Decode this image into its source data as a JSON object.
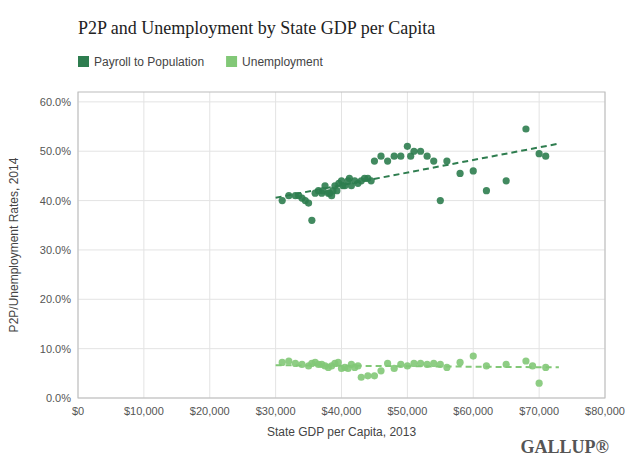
{
  "chart_data": {
    "type": "scatter",
    "title": "P2P and Unemployment by State GDP per Capita",
    "xlabel": "State GDP per Capita, 2013",
    "ylabel": "P2P/Unemployment Rates, 2014",
    "annotations": [
      "GALLUP®"
    ],
    "grid": true,
    "xlim": [
      0,
      80000
    ],
    "ylim": [
      0.0,
      0.62
    ],
    "xticks": [
      {
        "value": 0,
        "label": "$0"
      },
      {
        "value": 10000,
        "label": "$10,000"
      },
      {
        "value": 20000,
        "label": "$20,000"
      },
      {
        "value": 30000,
        "label": "$30,000"
      },
      {
        "value": 40000,
        "label": "$40,000"
      },
      {
        "value": 50000,
        "label": "$50,000"
      },
      {
        "value": 60000,
        "label": "$60,000"
      },
      {
        "value": 70000,
        "label": "$70,000"
      },
      {
        "value": 80000,
        "label": "$80,000"
      }
    ],
    "yticks": [
      {
        "value": 0.0,
        "label": "0.0%"
      },
      {
        "value": 0.1,
        "label": "10.0%"
      },
      {
        "value": 0.2,
        "label": "20.0%"
      },
      {
        "value": 0.3,
        "label": "30.0%"
      },
      {
        "value": 0.4,
        "label": "40.0%"
      },
      {
        "value": 0.5,
        "label": "50.0%"
      },
      {
        "value": 0.6,
        "label": "60.0%"
      }
    ],
    "series": [
      {
        "name": "Payroll to Population",
        "color": "#2e7d4f",
        "type": "scatter",
        "x": [
          31000,
          32000,
          33000,
          33500,
          34000,
          34500,
          35000,
          35500,
          36000,
          36500,
          37000,
          37200,
          37500,
          38000,
          38200,
          38500,
          38700,
          39000,
          39300,
          39600,
          40000,
          40200,
          40500,
          41000,
          41200,
          41500,
          42000,
          42500,
          43000,
          43500,
          44000,
          44500,
          45000,
          46000,
          47000,
          48000,
          49000,
          50000,
          50500,
          51000,
          52000,
          53000,
          54000,
          55000,
          56000,
          58000,
          60000,
          62000,
          65000,
          68000,
          70000,
          71000
        ],
        "values": [
          0.4,
          0.41,
          0.41,
          0.41,
          0.405,
          0.4,
          0.395,
          0.36,
          0.415,
          0.42,
          0.415,
          0.42,
          0.43,
          0.415,
          0.415,
          0.41,
          0.42,
          0.43,
          0.42,
          0.435,
          0.44,
          0.43,
          0.43,
          0.44,
          0.445,
          0.43,
          0.44,
          0.435,
          0.44,
          0.445,
          0.445,
          0.44,
          0.48,
          0.49,
          0.48,
          0.49,
          0.49,
          0.51,
          0.49,
          0.5,
          0.5,
          0.49,
          0.48,
          0.4,
          0.48,
          0.455,
          0.46,
          0.42,
          0.44,
          0.545,
          0.495,
          0.49
        ]
      },
      {
        "name": "Unemployment",
        "color": "#82c877",
        "type": "scatter",
        "x": [
          31000,
          32000,
          33000,
          34000,
          35000,
          35500,
          36000,
          36500,
          37000,
          37500,
          38000,
          38500,
          39000,
          39500,
          40000,
          40500,
          41000,
          41500,
          42000,
          42500,
          43000,
          44000,
          45000,
          46000,
          47000,
          48000,
          49000,
          50000,
          51000,
          52000,
          53000,
          54000,
          55000,
          56000,
          58000,
          60000,
          62000,
          65000,
          68000,
          69000,
          70000,
          71000
        ],
        "values": [
          0.072,
          0.075,
          0.07,
          0.068,
          0.065,
          0.07,
          0.072,
          0.068,
          0.068,
          0.065,
          0.062,
          0.065,
          0.07,
          0.072,
          0.06,
          0.062,
          0.06,
          0.068,
          0.062,
          0.065,
          0.042,
          0.045,
          0.045,
          0.055,
          0.07,
          0.06,
          0.068,
          0.065,
          0.07,
          0.07,
          0.068,
          0.07,
          0.068,
          0.062,
          0.072,
          0.085,
          0.065,
          0.068,
          0.075,
          0.065,
          0.03,
          0.062
        ]
      },
      {
        "color": "#2e7d4f",
        "type": "line",
        "line_style": "dashed",
        "x": [
          30000,
          73000
        ],
        "values": [
          0.4057,
          0.5154
        ]
      },
      {
        "color": "#82c877",
        "type": "line",
        "line_style": "dashed",
        "x": [
          30000,
          73000
        ],
        "values": [
          0.0664,
          0.0621
        ]
      }
    ]
  }
}
